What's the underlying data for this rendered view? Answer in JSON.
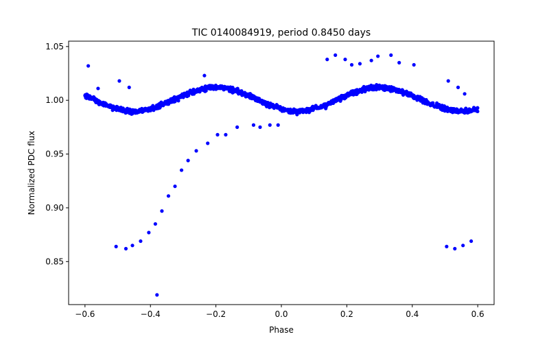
{
  "chart_data": {
    "type": "scatter",
    "title": "TIC 0140084919, period 0.8450 days",
    "xlabel": "Phase",
    "ylabel": "Normalized PDC flux",
    "xlim": [
      -0.65,
      0.65
    ],
    "ylim": [
      0.81,
      1.055
    ],
    "grid": false,
    "marker_color": "#0000ff",
    "x_ticks": [
      -0.6,
      -0.4,
      -0.2,
      0.0,
      0.2,
      0.4,
      0.6
    ],
    "x_tick_labels": [
      "−0.6",
      "−0.4",
      "−0.2",
      "0.0",
      "0.2",
      "0.4",
      "0.6"
    ],
    "y_ticks": [
      0.85,
      0.9,
      0.95,
      1.0,
      1.05
    ],
    "y_tick_labels": [
      "0.85",
      "0.90",
      "0.95",
      "1.00",
      "1.05"
    ],
    "series": [
      {
        "trend": {
          "description_hint": "dense band: sinusoidal variation",
          "x_range": [
            -0.6,
            0.6
          ],
          "amplitude": 0.011,
          "mean": 1.001,
          "cycles_per_unit_phase": 2,
          "phase_of_maximum": 0.3
        },
        "outliers": [
          [
            -0.59,
            1.032
          ],
          [
            -0.505,
            0.864
          ],
          [
            -0.475,
            0.862
          ],
          [
            -0.455,
            0.865
          ],
          [
            -0.43,
            0.869
          ],
          [
            -0.405,
            0.877
          ],
          [
            -0.385,
            0.885
          ],
          [
            -0.365,
            0.897
          ],
          [
            -0.345,
            0.911
          ],
          [
            -0.325,
            0.92
          ],
          [
            -0.305,
            0.935
          ],
          [
            -0.285,
            0.944
          ],
          [
            -0.26,
            0.953
          ],
          [
            -0.225,
            0.96
          ],
          [
            -0.195,
            0.968
          ],
          [
            -0.17,
            0.968
          ],
          [
            -0.135,
            0.975
          ],
          [
            -0.38,
            0.819
          ],
          [
            -0.495,
            1.018
          ],
          [
            -0.465,
            1.012
          ],
          [
            -0.085,
            0.977
          ],
          [
            -0.065,
            0.975
          ],
          [
            -0.035,
            0.977
          ],
          [
            -0.01,
            0.977
          ],
          [
            0.14,
            1.038
          ],
          [
            0.165,
            1.042
          ],
          [
            0.195,
            1.038
          ],
          [
            0.215,
            1.033
          ],
          [
            0.24,
            1.034
          ],
          [
            0.275,
            1.037
          ],
          [
            0.295,
            1.041
          ],
          [
            0.335,
            1.042
          ],
          [
            0.36,
            1.035
          ],
          [
            0.405,
            1.033
          ],
          [
            0.505,
            0.864
          ],
          [
            0.53,
            0.862
          ],
          [
            0.555,
            0.865
          ],
          [
            0.58,
            0.869
          ],
          [
            0.51,
            1.018
          ],
          [
            0.54,
            1.012
          ],
          [
            -0.235,
            1.023
          ],
          [
            -0.56,
            1.011
          ],
          [
            0.56,
            1.006
          ]
        ]
      }
    ]
  }
}
